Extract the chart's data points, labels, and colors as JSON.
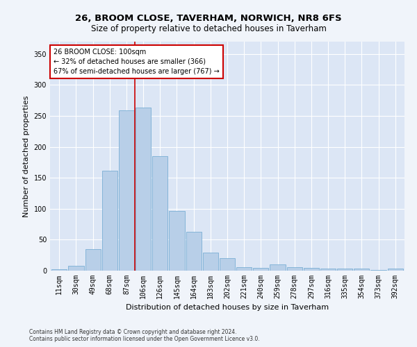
{
  "title": "26, BROOM CLOSE, TAVERHAM, NORWICH, NR8 6FS",
  "subtitle": "Size of property relative to detached houses in Taverham",
  "xlabel": "Distribution of detached houses by size in Taverham",
  "ylabel": "Number of detached properties",
  "categories": [
    "11sqm",
    "30sqm",
    "49sqm",
    "68sqm",
    "87sqm",
    "106sqm",
    "126sqm",
    "145sqm",
    "164sqm",
    "183sqm",
    "202sqm",
    "221sqm",
    "240sqm",
    "259sqm",
    "278sqm",
    "297sqm",
    "316sqm",
    "335sqm",
    "354sqm",
    "373sqm",
    "392sqm"
  ],
  "values": [
    2,
    8,
    35,
    162,
    259,
    263,
    185,
    96,
    63,
    29,
    20,
    6,
    5,
    10,
    6,
    5,
    3,
    3,
    3,
    1,
    3
  ],
  "bar_color": "#b8cfe8",
  "bar_edge_color": "#7aaed4",
  "background_color": "#dce6f5",
  "grid_color": "#ffffff",
  "annotation_title": "26 BROOM CLOSE: 100sqm",
  "annotation_line1": "← 32% of detached houses are smaller (366)",
  "annotation_line2": "67% of semi-detached houses are larger (767) →",
  "annotation_box_facecolor": "#ffffff",
  "annotation_border_color": "#cc0000",
  "vline_color": "#cc0000",
  "vline_x": 4.5,
  "ylim": [
    0,
    370
  ],
  "yticks": [
    0,
    50,
    100,
    150,
    200,
    250,
    300,
    350
  ],
  "footer1": "Contains HM Land Registry data © Crown copyright and database right 2024.",
  "footer2": "Contains public sector information licensed under the Open Government Licence v3.0.",
  "title_fontsize": 9.5,
  "subtitle_fontsize": 8.5,
  "tick_fontsize": 7,
  "ylabel_fontsize": 8,
  "xlabel_fontsize": 8,
  "annotation_fontsize": 7,
  "footer_fontsize": 5.5
}
